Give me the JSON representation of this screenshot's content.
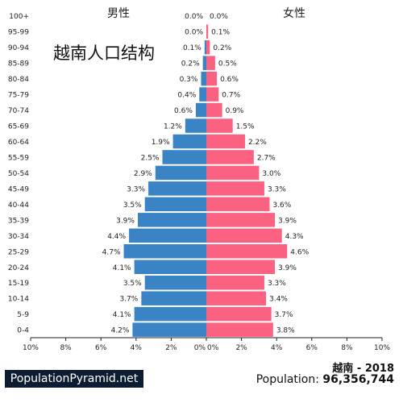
{
  "chart_data": {
    "type": "bar",
    "orientation": "horizontal",
    "layout": "population-pyramid",
    "title": "越南人口结构",
    "left_label": "男性",
    "right_label": "女性",
    "categories": [
      "100+",
      "95-99",
      "90-94",
      "85-89",
      "80-84",
      "75-79",
      "70-74",
      "65-69",
      "60-64",
      "55-59",
      "50-54",
      "45-49",
      "40-44",
      "35-39",
      "30-34",
      "25-29",
      "20-24",
      "15-19",
      "10-14",
      "5-9",
      "0-4"
    ],
    "series": [
      {
        "name": "男性",
        "color": "#3a84c6",
        "values": [
          0.0,
          0.0,
          0.1,
          0.2,
          0.3,
          0.4,
          0.6,
          1.2,
          1.9,
          2.5,
          2.9,
          3.3,
          3.5,
          3.9,
          4.4,
          4.7,
          4.1,
          3.5,
          3.7,
          4.1,
          4.2
        ]
      },
      {
        "name": "女性",
        "color": "#fb6180",
        "values": [
          0.0,
          0.1,
          0.2,
          0.5,
          0.6,
          0.7,
          0.9,
          1.5,
          2.2,
          2.7,
          3.0,
          3.3,
          3.6,
          3.9,
          4.3,
          4.6,
          3.9,
          3.3,
          3.4,
          3.7,
          3.8
        ]
      }
    ],
    "x_ticks_left": [
      "10%",
      "8%",
      "6%",
      "4%",
      "2%",
      "0%"
    ],
    "x_ticks_right": [
      "0%",
      "2%",
      "4%",
      "6%",
      "8%",
      "10%"
    ],
    "xlim": [
      -10,
      10
    ],
    "value_suffix": "%",
    "grid": false
  },
  "footer": {
    "brand": "PopulationPyramid.net",
    "country": "越南",
    "year_sep": " - ",
    "year": "2018",
    "population_label": "Population: ",
    "population_value": "96,356,744"
  }
}
